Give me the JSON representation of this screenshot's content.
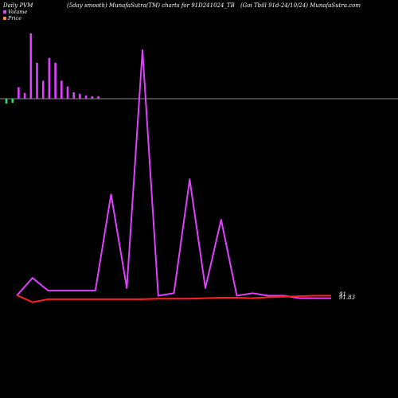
{
  "header": {
    "left": "Daily PVM",
    "middle": "(5day smooth) MunafaSutra(TM) charts for 91D241024_TB",
    "right": "(Goi  Tbill 91d-24/10/24) MunafaSutra.com"
  },
  "legend": [
    {
      "label": "Volume",
      "color": "#e040ff"
    },
    {
      "label": "Price",
      "color": "#ff8844"
    }
  ],
  "chart_data": {
    "type": "line",
    "title": "(5day smooth) MunafaSutra(TM) charts for 91D241024_TB",
    "value_labels": [
      "91",
      "91.83"
    ],
    "volume_bars": [
      {
        "value": 6,
        "sign": "down"
      },
      {
        "value": 5,
        "sign": "down"
      },
      {
        "value": 14,
        "sign": "up"
      },
      {
        "value": 7,
        "sign": "up"
      },
      {
        "value": 80,
        "sign": "up"
      },
      {
        "value": 44,
        "sign": "up"
      },
      {
        "value": 22,
        "sign": "up"
      },
      {
        "value": 50,
        "sign": "up"
      },
      {
        "value": 44,
        "sign": "up"
      },
      {
        "value": 22,
        "sign": "up"
      },
      {
        "value": 15,
        "sign": "up"
      },
      {
        "value": 8,
        "sign": "up"
      },
      {
        "value": 6,
        "sign": "up"
      },
      {
        "value": 4,
        "sign": "up"
      },
      {
        "value": 3,
        "sign": "up"
      },
      {
        "value": 3,
        "sign": "up"
      }
    ],
    "series": [
      {
        "values": [
          3,
          10,
          5,
          5,
          5,
          5,
          43,
          6,
          100,
          3,
          4,
          49,
          6,
          33,
          3,
          4,
          3,
          3,
          2,
          2,
          2
        ],
        "color": "#e040ff"
      },
      {
        "values": [
          3.2,
          0.4,
          1.6,
          1.6,
          1.6,
          1.6,
          1.6,
          1.6,
          1.6,
          1.8,
          1.8,
          1.8,
          2.0,
          2.2,
          2.2,
          2.0,
          2.4,
          2.6,
          2.8,
          3.0,
          3.0
        ],
        "color": "#ff2020"
      }
    ]
  }
}
